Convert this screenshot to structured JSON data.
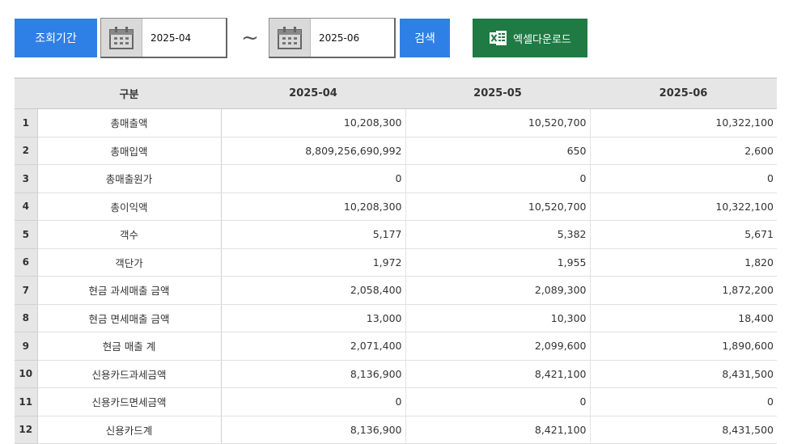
{
  "toolbar": {
    "period_label": "조회기간",
    "date_from": "2025-04",
    "separator": "~",
    "date_to": "2025-06",
    "search_label": "검색",
    "excel_label": "엑셀다운로드"
  },
  "colors": {
    "primary": "#2f80e6",
    "excel": "#1f7a43",
    "header_bg": "#e6e6e6"
  },
  "icons": {
    "calendar": "calendar-icon",
    "excel": "excel-icon"
  },
  "table": {
    "headers": [
      "구분",
      "2025-04",
      "2025-05",
      "2025-06"
    ],
    "rows": [
      {
        "idx": "1",
        "label": "총매출액",
        "values": [
          "10,208,300",
          "10,520,700",
          "10,322,100"
        ]
      },
      {
        "idx": "2",
        "label": "총매입액",
        "values": [
          "8,809,256,690,992",
          "650",
          "2,600"
        ]
      },
      {
        "idx": "3",
        "label": "총매출원가",
        "values": [
          "0",
          "0",
          "0"
        ]
      },
      {
        "idx": "4",
        "label": "총이익액",
        "values": [
          "10,208,300",
          "10,520,700",
          "10,322,100"
        ]
      },
      {
        "idx": "5",
        "label": "객수",
        "values": [
          "5,177",
          "5,382",
          "5,671"
        ]
      },
      {
        "idx": "6",
        "label": "객단가",
        "values": [
          "1,972",
          "1,955",
          "1,820"
        ]
      },
      {
        "idx": "7",
        "label": "현금 과세매출 금액",
        "values": [
          "2,058,400",
          "2,089,300",
          "1,872,200"
        ]
      },
      {
        "idx": "8",
        "label": "현금 면세매출 금액",
        "values": [
          "13,000",
          "10,300",
          "18,400"
        ]
      },
      {
        "idx": "9",
        "label": "현금 매출 계",
        "values": [
          "2,071,400",
          "2,099,600",
          "1,890,600"
        ]
      },
      {
        "idx": "10",
        "label": "신용카드과세금액",
        "values": [
          "8,136,900",
          "8,421,100",
          "8,431,500"
        ]
      },
      {
        "idx": "11",
        "label": "신용카드면세금액",
        "values": [
          "0",
          "0",
          "0"
        ]
      },
      {
        "idx": "12",
        "label": "신용카드계",
        "values": [
          "8,136,900",
          "8,421,100",
          "8,431,500"
        ]
      }
    ]
  }
}
